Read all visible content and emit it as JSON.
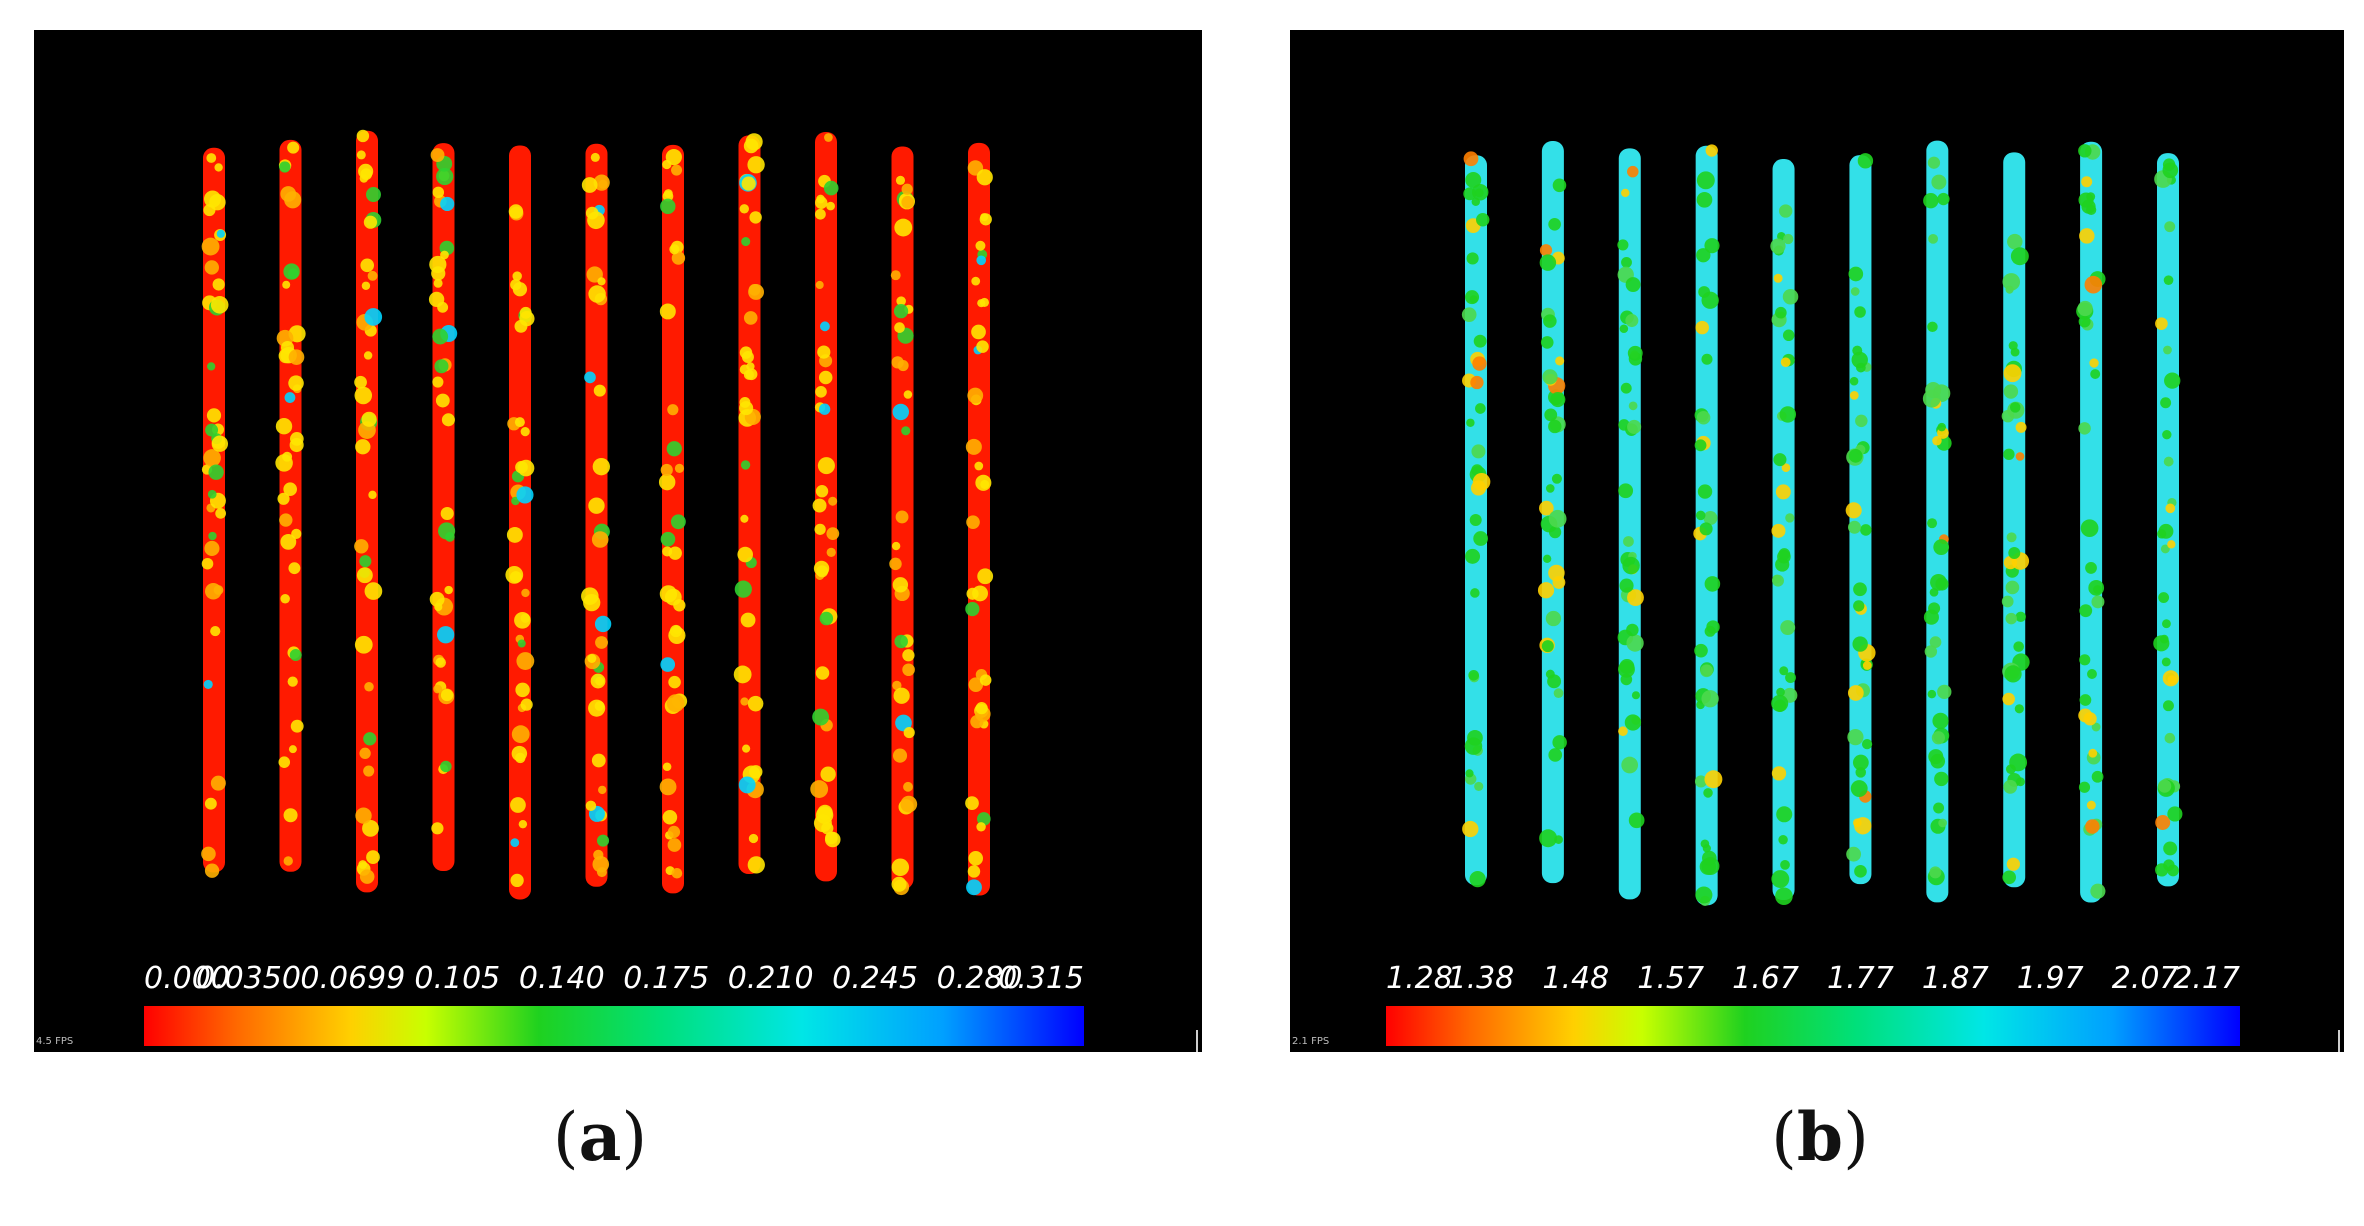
{
  "panels": [
    {
      "id": "a",
      "caption_letter": "a",
      "fps_text": "4.5 FPS",
      "base_color": "#ff1a00",
      "accent_colors": [
        "#ffe600",
        "#ffb000",
        "#2fd12f",
        "#00d4ff"
      ],
      "stripe_count": 11,
      "colorbar_ticks": [
        "0.000",
        "0.0350",
        "0.0699",
        "0.105",
        "0.140",
        "0.175",
        "0.210",
        "0.245",
        "0.280",
        "0.315"
      ]
    },
    {
      "id": "b",
      "caption_letter": "b",
      "fps_text": "2.1 FPS",
      "base_color": "#33e0e8",
      "accent_colors": [
        "#1fd11f",
        "#4cd84c",
        "#ffd000",
        "#ff8000"
      ],
      "stripe_count": 10,
      "colorbar_ticks": [
        "1.28",
        "1.38",
        "1.48",
        "1.57",
        "1.67",
        "1.77",
        "1.87",
        "1.97",
        "2.07",
        "2.17"
      ]
    }
  ]
}
